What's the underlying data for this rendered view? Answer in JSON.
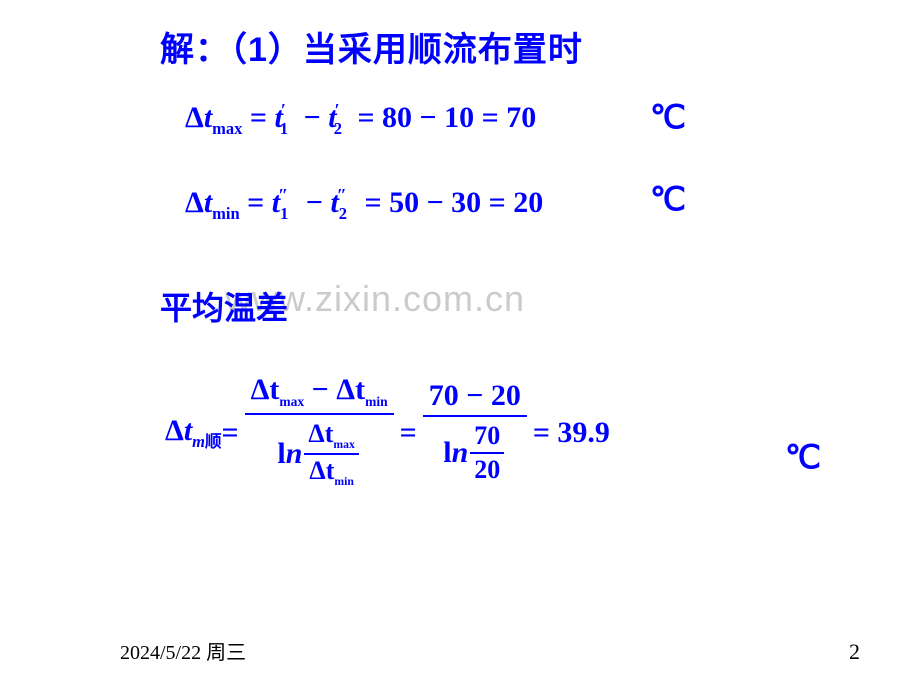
{
  "title": "解：（1）当采用顺流布置时",
  "eq1": {
    "lhs_delta": "Δ",
    "lhs_t": "t",
    "lhs_sub": "max",
    "eq": " = ",
    "t1": "t",
    "t1_sub": "1",
    "t1_sup": "′",
    "minus": " − ",
    "t2": "t",
    "t2_sub": "2",
    "t2_sup": "′",
    "eq2": " = 80 − 10 = 70"
  },
  "eq2": {
    "lhs_delta": "Δ",
    "lhs_t": "t",
    "lhs_sub": "min",
    "eq": " = ",
    "t1": "t",
    "t1_sub": "1",
    "t1_sup": "″",
    "minus": " − ",
    "t2": "t",
    "t2_sub": "2",
    "t2_sup": "″",
    "eq2": " = 50 − 30 = 20"
  },
  "unit": "℃",
  "subhead": "平均温差",
  "eq3": {
    "lhs_delta": "Δ",
    "lhs_t": "t",
    "lhs_sub_m": "m",
    "lhs_sub_cn": "顺",
    "eq": " = ",
    "num1_a": "Δt",
    "num1_a_sub": "max",
    "num1_minus": " − ",
    "num1_b": "Δt",
    "num1_b_sub": "min",
    "den1_ln": "ln",
    "den1_ft_a": "Δt",
    "den1_ft_a_sub": "max",
    "den1_ft_b": "Δt",
    "den1_ft_b_sub": "min",
    "eq2": " = ",
    "num2": "70 − 20",
    "den2_ln": "ln",
    "den2_a": "70",
    "den2_b": "20",
    "eq3": " = 39.9"
  },
  "watermark": "www.zixin.com.cn",
  "footer_date": "2024/5/22 周三",
  "footer_page": "2",
  "colors": {
    "text": "#0000ff",
    "bg": "#ffffff",
    "footer": "#000000",
    "watermark": "rgba(140,140,140,0.45)"
  }
}
